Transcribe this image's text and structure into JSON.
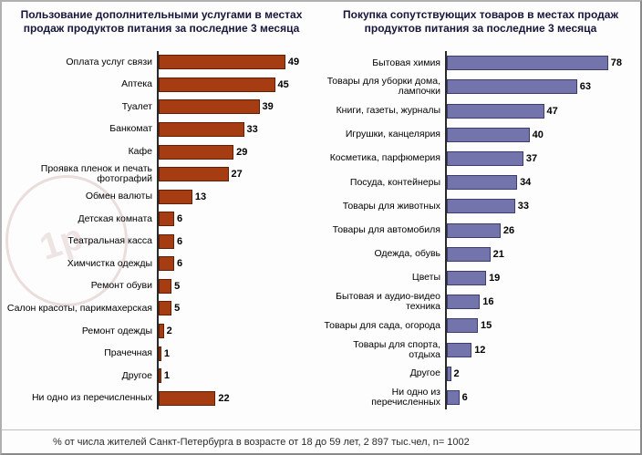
{
  "chart_data": [
    {
      "type": "bar",
      "title": "Пользование дополнительными услугами в местах продаж  продуктов питания за последние 3 месяца",
      "bar_color": "#a63c11",
      "bar_border_color": "#621f05",
      "axis_max": 60,
      "grid": false,
      "categories": [
        "Оплата услуг связи",
        "Аптека",
        "Туалет",
        "Банкомат",
        "Кафе",
        "Проявка пленок и печать фотографий",
        "Обмен валюты",
        "Детская комната",
        "Театральная касса",
        "Химчистка одежды",
        "Ремонт обуви",
        "Салон красоты, парикмахерская",
        "Ремонт одежды",
        "Прачечная",
        "Другое",
        "Ни одно из перечисленных"
      ],
      "values": [
        49,
        45,
        39,
        33,
        29,
        27,
        13,
        6,
        6,
        6,
        5,
        5,
        2,
        1,
        1,
        22
      ]
    },
    {
      "type": "bar",
      "title": "Покупка сопутствующих товаров в местах продаж продуктов питания за последние 3 месяца",
      "bar_color": "#7474ac",
      "bar_border_color": "#3c3c6e",
      "axis_max": 90,
      "grid": false,
      "categories": [
        "Бытовая химия",
        "Товары для уборки дома, лампочки",
        "Книги, газеты, журналы",
        "Игрушки, канцелярия",
        "Косметика, парфюмерия",
        "Посуда, контейнеры",
        "Товары для животных",
        "Товары для автомобиля",
        "Одежда, обувь",
        "Цветы",
        "Бытовая и аудио-видео техника",
        "Товары для сада, огорода",
        "Товары для спорта, отдыха",
        "Другое",
        "Ни одно из перечисленных"
      ],
      "values": [
        78,
        63,
        47,
        40,
        37,
        34,
        33,
        26,
        21,
        19,
        16,
        15,
        12,
        2,
        6
      ]
    }
  ],
  "watermark_text": "1р.",
  "footer": "% от числа жителей Санкт-Петербурга в возрасте от 18 до 59 лет,  2 897 тыс.чел, n= 1002"
}
